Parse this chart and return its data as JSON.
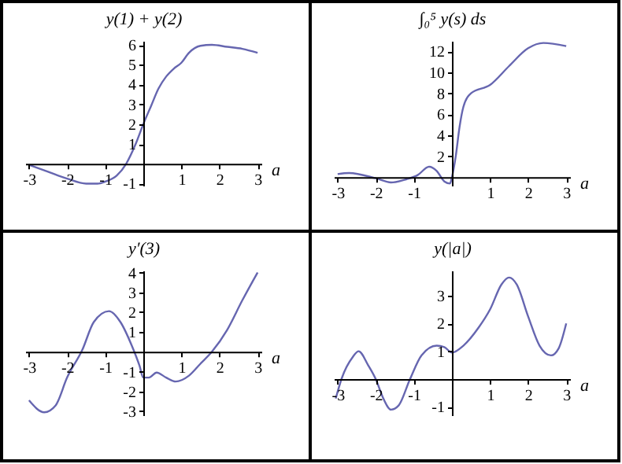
{
  "chart_data": [
    {
      "type": "line",
      "xlabel": "a",
      "ylabel": "y(1) + y(2)",
      "xlim": [
        -3.1,
        3.1
      ],
      "ylim": [
        -1.1,
        6.2
      ],
      "xticks": [
        -3,
        -2,
        -1,
        1,
        2,
        3
      ],
      "yticks": [
        -1,
        1,
        2,
        3,
        4,
        5,
        6
      ],
      "grid": false,
      "marker": "none",
      "line_style": "solid",
      "series": [
        {
          "color": "#6666b0",
          "x": [
            -3,
            -2.5,
            -2,
            -1.5,
            -1.2,
            -1,
            -0.7,
            -0.45,
            -0.2,
            0,
            0.2,
            0.4,
            0.6,
            0.8,
            1,
            1.2,
            1.5,
            1.8,
            2.2,
            2.6,
            3
          ],
          "values": [
            -0.05,
            -0.4,
            -0.75,
            -1.0,
            -1.0,
            -0.9,
            -0.6,
            0,
            1.0,
            2.0,
            2.9,
            3.8,
            4.4,
            4.8,
            5.1,
            5.6,
            5.95,
            6.0,
            5.9,
            5.8,
            5.6
          ]
        }
      ]
    },
    {
      "type": "line",
      "xlabel": "a",
      "ylabel": "∫₀⁵ y(s) ds",
      "xlim": [
        -3.1,
        3.1
      ],
      "ylim": [
        -0.8,
        13
      ],
      "xticks": [
        -3,
        -2,
        -1,
        1,
        2,
        3
      ],
      "yticks": [
        2,
        4,
        6,
        8,
        10,
        12
      ],
      "grid": false,
      "marker": "none",
      "line_style": "solid",
      "series": [
        {
          "color": "#6666b0",
          "x": [
            -3,
            -2.7,
            -2,
            -1.6,
            -1.2,
            -0.9,
            -0.6,
            -0.4,
            -0.2,
            -0.05,
            0,
            0.1,
            0.2,
            0.3,
            0.5,
            1,
            1.5,
            2,
            2.4,
            3
          ],
          "values": [
            0.3,
            0.4,
            -0.1,
            -0.5,
            -0.2,
            0.2,
            1.0,
            0.6,
            -0.4,
            -0.6,
            0,
            2,
            4.8,
            6.7,
            8.0,
            8.8,
            10.6,
            12.3,
            12.8,
            12.5
          ]
        }
      ]
    },
    {
      "type": "line",
      "xlabel": "a",
      "ylabel": "y′(3)",
      "xlim": [
        -3.1,
        3.1
      ],
      "ylim": [
        -3.2,
        4.1
      ],
      "xticks": [
        -3,
        -2,
        -1,
        1,
        2,
        3
      ],
      "yticks": [
        -3,
        -2,
        -1,
        1,
        2,
        3,
        4
      ],
      "grid": false,
      "marker": "none",
      "line_style": "solid",
      "series": [
        {
          "color": "#6666b0",
          "x": [
            -3,
            -2.6,
            -2.3,
            -2,
            -1.6,
            -1.3,
            -0.9,
            -0.6,
            -0.3,
            -0.1,
            0,
            0.15,
            0.35,
            0.6,
            0.85,
            1.2,
            1.5,
            1.8,
            2.2,
            2.6,
            3
          ],
          "values": [
            -2.45,
            -3.05,
            -2.7,
            -1.3,
            0.1,
            1.5,
            2.05,
            1.5,
            0.3,
            -0.7,
            -1.3,
            -1.3,
            -1.05,
            -1.3,
            -1.5,
            -1.2,
            -0.6,
            0,
            1.1,
            2.6,
            4.0
          ]
        }
      ]
    },
    {
      "type": "line",
      "xlabel": "a",
      "ylabel": "y(|a|)",
      "xlim": [
        -3.1,
        3.1
      ],
      "ylim": [
        -1.3,
        3.9
      ],
      "xticks": [
        -3,
        -2,
        -1,
        1,
        2,
        3
      ],
      "yticks": [
        -1,
        1,
        2,
        3
      ],
      "grid": false,
      "marker": "none",
      "line_style": "solid",
      "series": [
        {
          "color": "#6666b0",
          "x": [
            -3.05,
            -2.9,
            -2.6,
            -2.45,
            -2.2,
            -2,
            -1.8,
            -1.6,
            -1.4,
            -1.1,
            -0.8,
            -0.4,
            -0.2,
            0,
            0.3,
            0.7,
            1,
            1.3,
            1.5,
            1.7,
            2,
            2.3,
            2.6,
            2.8,
            3
          ],
          "values": [
            -0.7,
            0,
            0.8,
            1.0,
            0.5,
            0,
            -0.7,
            -1.1,
            -0.95,
            0,
            0.85,
            1.2,
            1.15,
            0.95,
            1.2,
            1.85,
            2.5,
            3.4,
            3.65,
            3.4,
            2.25,
            1.2,
            0.85,
            1.1,
            2.0
          ]
        }
      ]
    }
  ]
}
